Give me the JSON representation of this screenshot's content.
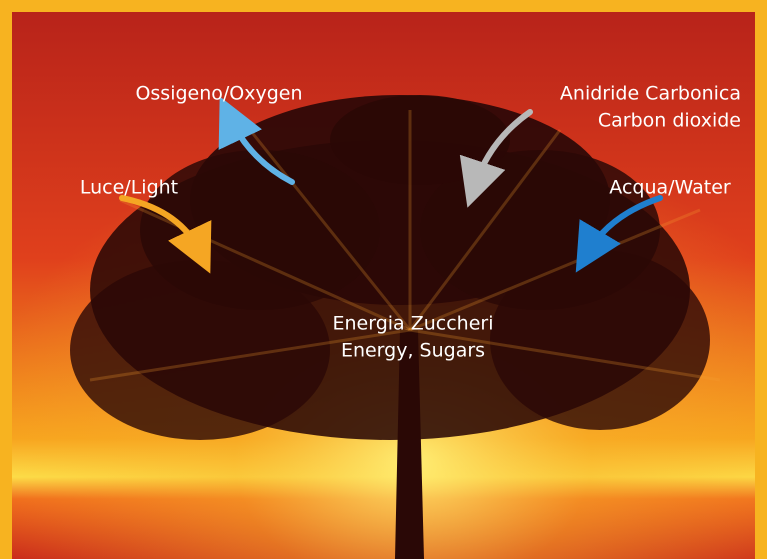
{
  "labels": {
    "oxygen": "Ossigeno/Oxygen",
    "carbon_dioxide": [
      "Anidride Carbonica",
      "Carbon dioxide"
    ],
    "light": "Luce/Light",
    "water": "Acqua/Water",
    "energy": [
      "Energia Zuccheri",
      "Energy, Sugars"
    ]
  }
}
